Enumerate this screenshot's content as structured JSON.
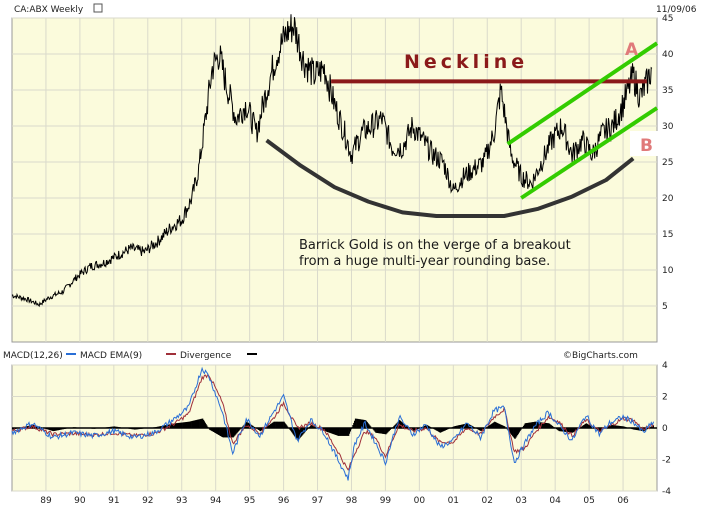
{
  "header": {
    "ticker": "CA:ABX Weekly",
    "date": "11/09/06",
    "watermark": "©BigCharts.com"
  },
  "colors": {
    "panel_bg": "#FBFBDC",
    "grid": "#DADACB",
    "price": "#000000",
    "neckline": "#8B1A1A",
    "channel": "#33CC00",
    "base_curve": "#333333",
    "macd": "#2A6FD6",
    "signal": "#A0303A",
    "divergence": "#000000",
    "label_pink": "#E07A7A"
  },
  "annotations": {
    "neckline": "Neckline",
    "label_a": "A",
    "label_b": "B",
    "comment_line1": "Barrick Gold is on the verge of a breakout",
    "comment_line2": "from a huge multi-year rounding base."
  },
  "legend": {
    "macd": "MACD(12,26)",
    "ema": "MACD EMA(9)",
    "divergence": "Divergence"
  },
  "chart_data": [
    {
      "type": "line",
      "title": "CA:ABX Weekly",
      "series": [
        {
          "name": "",
          "points": [
            [
              1988.0,
              6.5
            ],
            [
              1988.4,
              6.0
            ],
            [
              1988.8,
              5.2
            ],
            [
              1989.1,
              6.2
            ],
            [
              1989.5,
              7.0
            ],
            [
              1989.9,
              9.0
            ],
            [
              1990.3,
              10.5
            ],
            [
              1990.7,
              11.0
            ],
            [
              1991.1,
              12.0
            ],
            [
              1991.5,
              13.0
            ],
            [
              1991.9,
              12.5
            ],
            [
              1992.3,
              14.0
            ],
            [
              1992.7,
              16.0
            ],
            [
              1993.0,
              17.0
            ],
            [
              1993.3,
              20.0
            ],
            [
              1993.5,
              24.0
            ],
            [
              1993.7,
              31.0
            ],
            [
              1993.9,
              38.0
            ],
            [
              1994.1,
              40.0
            ],
            [
              1994.3,
              36.0
            ],
            [
              1994.6,
              31.0
            ],
            [
              1994.9,
              33.0
            ],
            [
              1995.2,
              29.0
            ],
            [
              1995.5,
              35.0
            ],
            [
              1995.8,
              40.0
            ],
            [
              1996.1,
              43.0
            ],
            [
              1996.3,
              44.0
            ],
            [
              1996.6,
              39.0
            ],
            [
              1996.9,
              37.0
            ],
            [
              1997.2,
              38.0
            ],
            [
              1997.5,
              33.0
            ],
            [
              1997.8,
              29.0
            ],
            [
              1998.0,
              26.0
            ],
            [
              1998.3,
              29.0
            ],
            [
              1998.6,
              30.0
            ],
            [
              1998.9,
              31.0
            ],
            [
              1999.2,
              27.0
            ],
            [
              1999.5,
              27.0
            ],
            [
              1999.8,
              30.0
            ],
            [
              2000.1,
              28.0
            ],
            [
              2000.4,
              26.0
            ],
            [
              2000.7,
              25.0
            ],
            [
              2001.0,
              21.0
            ],
            [
              2001.3,
              23.0
            ],
            [
              2001.6,
              24.0
            ],
            [
              2001.9,
              25.0
            ],
            [
              2002.2,
              29.0
            ],
            [
              2002.4,
              35.0
            ],
            [
              2002.7,
              26.0
            ],
            [
              2003.0,
              23.0
            ],
            [
              2003.3,
              22.0
            ],
            [
              2003.6,
              25.0
            ],
            [
              2003.9,
              28.0
            ],
            [
              2004.2,
              30.0
            ],
            [
              2004.5,
              26.0
            ],
            [
              2004.8,
              28.0
            ],
            [
              2005.1,
              26.0
            ],
            [
              2005.4,
              29.0
            ],
            [
              2005.7,
              30.0
            ],
            [
              2006.0,
              33.0
            ],
            [
              2006.3,
              37.0
            ],
            [
              2006.5,
              34.0
            ],
            [
              2006.7,
              36.0
            ],
            [
              2006.85,
              38.0
            ]
          ]
        }
      ],
      "y_ticks": [
        5,
        10,
        15,
        20,
        25,
        30,
        35,
        40,
        45
      ],
      "ylim": [
        0,
        45
      ],
      "xlim": [
        1988.0,
        2007.0
      ],
      "overlays": {
        "neckline": {
          "x": [
            1997.4,
            2006.7
          ],
          "y": [
            36.2,
            36.2
          ]
        },
        "channel_upper": {
          "x": [
            2002.6,
            2007.0
          ],
          "y": [
            27.5,
            41.5
          ]
        },
        "channel_lower": {
          "x": [
            2003.0,
            2007.0
          ],
          "y": [
            20.0,
            32.5
          ]
        },
        "rounding_base": {
          "x": [
            1995.5,
            1996.5,
            1997.5,
            1998.5,
            1999.5,
            2000.5,
            2001.5,
            2002.5,
            2003.5,
            2004.5,
            2005.5,
            2006.3
          ],
          "y": [
            28,
            24.5,
            21.5,
            19.5,
            18,
            17.5,
            17.5,
            17.5,
            18.5,
            20.2,
            22.5,
            25.5
          ]
        }
      },
      "grid": true
    },
    {
      "type": "line",
      "title": "",
      "series": [
        {
          "name": "MACD(12,26)",
          "points": [
            [
              1988.0,
              -0.3
            ],
            [
              1988.6,
              0.3
            ],
            [
              1989.2,
              -0.6
            ],
            [
              1989.8,
              -0.3
            ],
            [
              1990.4,
              -0.5
            ],
            [
              1991.0,
              -0.2
            ],
            [
              1991.6,
              -0.6
            ],
            [
              1992.2,
              -0.3
            ],
            [
              1992.8,
              0.6
            ],
            [
              1993.2,
              1.3
            ],
            [
              1993.6,
              3.8
            ],
            [
              1993.8,
              3.3
            ],
            [
              1994.2,
              1.0
            ],
            [
              1994.5,
              -1.6
            ],
            [
              1994.9,
              0.6
            ],
            [
              1995.3,
              -0.5
            ],
            [
              1995.7,
              1.0
            ],
            [
              1996.0,
              2.0
            ],
            [
              1996.4,
              -0.8
            ],
            [
              1996.8,
              0.5
            ],
            [
              1997.2,
              -0.3
            ],
            [
              1997.6,
              -2.0
            ],
            [
              1997.9,
              -3.2
            ],
            [
              1998.1,
              -1.0
            ],
            [
              1998.4,
              0.3
            ],
            [
              1998.7,
              -0.9
            ],
            [
              1999.0,
              -2.2
            ],
            [
              1999.4,
              0.7
            ],
            [
              1999.8,
              -0.4
            ],
            [
              2000.2,
              0.2
            ],
            [
              2000.6,
              -1.2
            ],
            [
              2001.0,
              -0.8
            ],
            [
              2001.4,
              0.3
            ],
            [
              2001.8,
              -0.6
            ],
            [
              2002.2,
              1.1
            ],
            [
              2002.5,
              1.3
            ],
            [
              2002.8,
              -2.2
            ],
            [
              2003.1,
              -1.0
            ],
            [
              2003.4,
              0.1
            ],
            [
              2003.8,
              1.0
            ],
            [
              2004.1,
              0.2
            ],
            [
              2004.5,
              -0.8
            ],
            [
              2004.9,
              0.8
            ],
            [
              2005.3,
              -0.4
            ],
            [
              2005.6,
              0.3
            ],
            [
              2006.0,
              0.7
            ],
            [
              2006.3,
              0.4
            ],
            [
              2006.6,
              -0.3
            ],
            [
              2006.9,
              0.4
            ]
          ]
        },
        {
          "name": "MACD EMA(9)",
          "points": [
            [
              1988.0,
              -0.2
            ],
            [
              1988.6,
              0.1
            ],
            [
              1989.2,
              -0.4
            ],
            [
              1989.8,
              -0.35
            ],
            [
              1990.4,
              -0.45
            ],
            [
              1991.0,
              -0.3
            ],
            [
              1991.6,
              -0.5
            ],
            [
              1992.2,
              -0.35
            ],
            [
              1992.8,
              0.3
            ],
            [
              1993.2,
              0.9
            ],
            [
              1993.6,
              3.2
            ],
            [
              1993.8,
              3.4
            ],
            [
              1994.2,
              1.6
            ],
            [
              1994.5,
              -1.0
            ],
            [
              1994.9,
              0.2
            ],
            [
              1995.3,
              -0.3
            ],
            [
              1995.7,
              0.6
            ],
            [
              1996.0,
              1.6
            ],
            [
              1996.4,
              0.0
            ],
            [
              1996.8,
              0.3
            ],
            [
              1997.2,
              -0.1
            ],
            [
              1997.6,
              -1.5
            ],
            [
              1997.9,
              -2.7
            ],
            [
              1998.1,
              -1.6
            ],
            [
              1998.4,
              -0.2
            ],
            [
              1998.7,
              -0.6
            ],
            [
              1999.0,
              -1.8
            ],
            [
              1999.4,
              0.2
            ],
            [
              1999.8,
              -0.2
            ],
            [
              2000.2,
              0.0
            ],
            [
              2000.6,
              -0.9
            ],
            [
              2001.0,
              -0.9
            ],
            [
              2001.4,
              0.0
            ],
            [
              2001.8,
              -0.4
            ],
            [
              2002.2,
              0.7
            ],
            [
              2002.5,
              1.2
            ],
            [
              2002.8,
              -1.5
            ],
            [
              2003.1,
              -1.3
            ],
            [
              2003.4,
              -0.3
            ],
            [
              2003.8,
              0.7
            ],
            [
              2004.1,
              0.4
            ],
            [
              2004.5,
              -0.5
            ],
            [
              2004.9,
              0.5
            ],
            [
              2005.3,
              -0.2
            ],
            [
              2005.6,
              0.1
            ],
            [
              2006.0,
              0.6
            ],
            [
              2006.3,
              0.5
            ],
            [
              2006.6,
              -0.1
            ],
            [
              2006.9,
              0.2
            ]
          ]
        },
        {
          "name": "Divergence",
          "points": [
            [
              1988.0,
              -0.1
            ],
            [
              1988.6,
              0.2
            ],
            [
              1989.2,
              -0.2
            ],
            [
              1989.8,
              0.05
            ],
            [
              1990.4,
              -0.05
            ],
            [
              1991.0,
              0.1
            ],
            [
              1991.6,
              -0.1
            ],
            [
              1992.2,
              0.05
            ],
            [
              1992.8,
              0.3
            ],
            [
              1993.2,
              0.4
            ],
            [
              1993.6,
              0.6
            ],
            [
              1993.8,
              -0.1
            ],
            [
              1994.2,
              -0.6
            ],
            [
              1994.5,
              -0.6
            ],
            [
              1994.9,
              0.4
            ],
            [
              1995.3,
              -0.2
            ],
            [
              1995.7,
              0.4
            ],
            [
              1996.0,
              0.4
            ],
            [
              1996.4,
              -0.8
            ],
            [
              1996.8,
              0.2
            ],
            [
              1997.2,
              -0.2
            ],
            [
              1997.6,
              -0.5
            ],
            [
              1997.9,
              -0.5
            ],
            [
              1998.1,
              0.6
            ],
            [
              1998.4,
              0.5
            ],
            [
              1998.7,
              -0.3
            ],
            [
              1999.0,
              -0.4
            ],
            [
              1999.4,
              0.5
            ],
            [
              1999.8,
              -0.2
            ],
            [
              2000.2,
              0.2
            ],
            [
              2000.6,
              -0.3
            ],
            [
              2001.0,
              0.1
            ],
            [
              2001.4,
              0.3
            ],
            [
              2001.8,
              -0.2
            ],
            [
              2002.2,
              0.4
            ],
            [
              2002.5,
              0.1
            ],
            [
              2002.8,
              -0.7
            ],
            [
              2003.1,
              0.3
            ],
            [
              2003.4,
              0.4
            ],
            [
              2003.8,
              0.3
            ],
            [
              2004.1,
              -0.2
            ],
            [
              2004.5,
              -0.3
            ],
            [
              2004.9,
              0.3
            ],
            [
              2005.3,
              -0.2
            ],
            [
              2005.6,
              0.2
            ],
            [
              2006.0,
              0.1
            ],
            [
              2006.3,
              -0.1
            ],
            [
              2006.6,
              -0.2
            ],
            [
              2006.9,
              0.2
            ]
          ]
        }
      ],
      "y_ticks": [
        -4,
        -2,
        0,
        2,
        4
      ],
      "ylim": [
        -4,
        4
      ],
      "xlim": [
        1988.0,
        2007.0
      ],
      "categories": [
        "89",
        "90",
        "91",
        "92",
        "93",
        "94",
        "95",
        "96",
        "97",
        "98",
        "99",
        "00",
        "01",
        "02",
        "03",
        "04",
        "05",
        "06"
      ],
      "category_x": [
        1989,
        1990,
        1991,
        1992,
        1993,
        1994,
        1995,
        1996,
        1997,
        1998,
        1999,
        2000,
        2001,
        2002,
        2003,
        2004,
        2005,
        2006
      ],
      "grid": true
    }
  ]
}
